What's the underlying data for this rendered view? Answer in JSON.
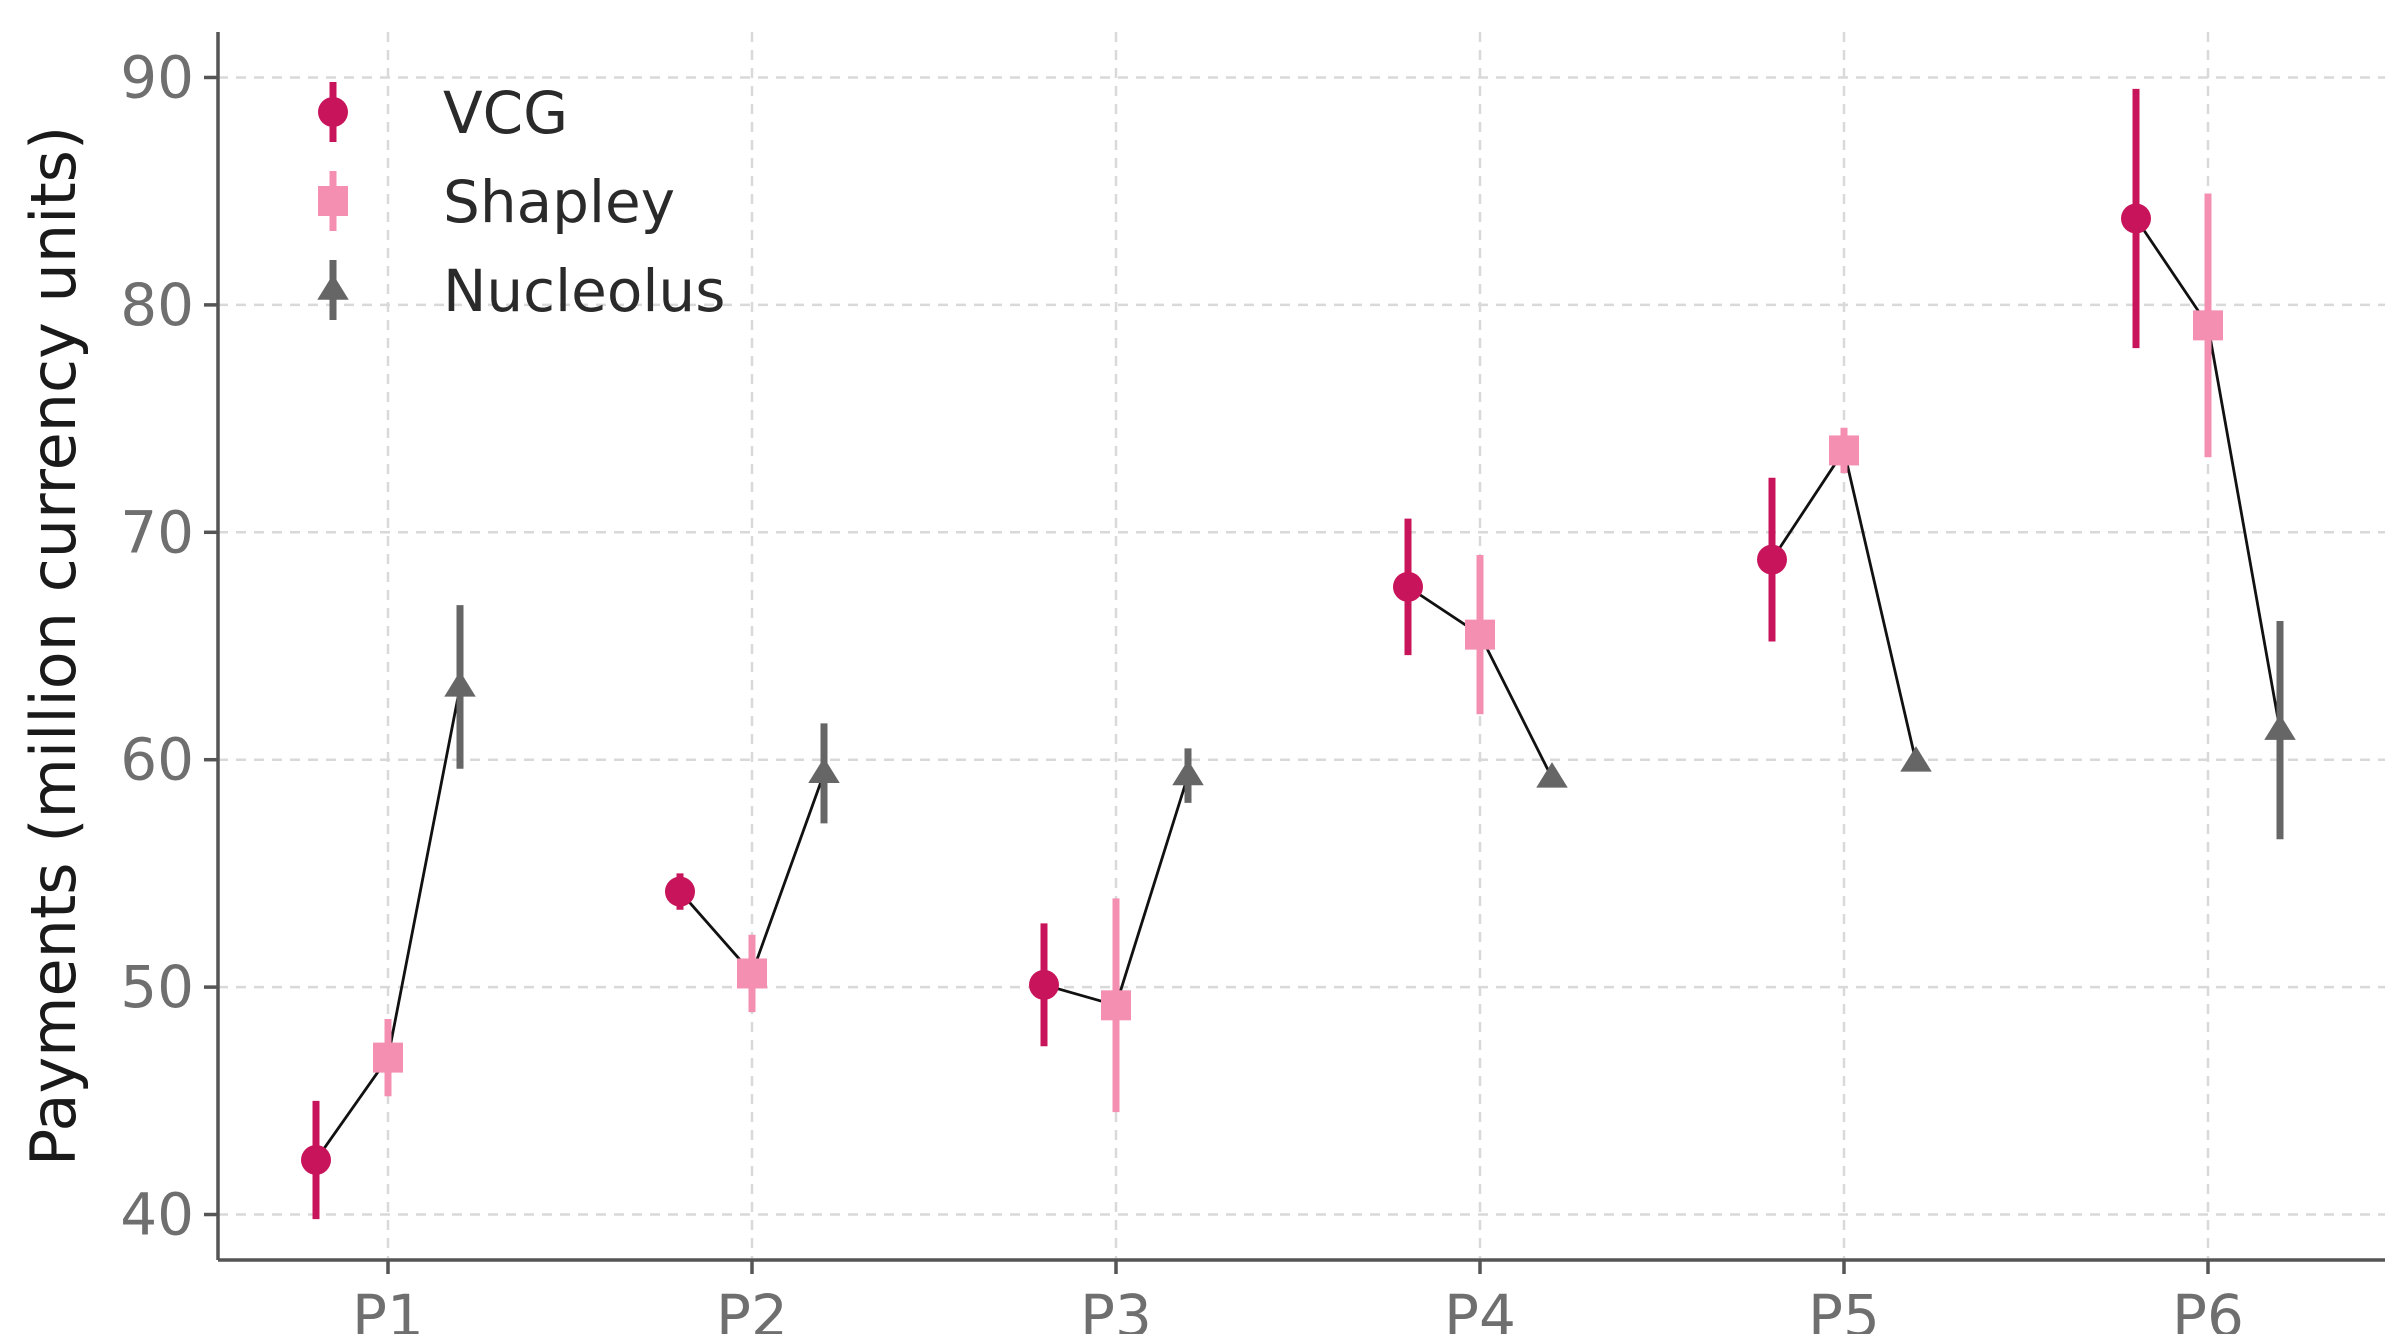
{
  "chart_data": {
    "type": "scatter",
    "title": "",
    "xlabel": "",
    "ylabel": "Payments (million currency units)",
    "categories": [
      "P1",
      "P2",
      "P3",
      "P4",
      "P5",
      "P6"
    ],
    "ylim": [
      38,
      92
    ],
    "yticks": [
      40,
      50,
      60,
      70,
      80,
      90
    ],
    "grid": true,
    "legend_position": "top-left",
    "connected_within_category": true,
    "series": [
      {
        "name": "VCG",
        "marker": "circle",
        "color": "#c8145a",
        "values": [
          42.4,
          54.2,
          50.1,
          67.6,
          68.8,
          83.8
        ],
        "errors": [
          2.6,
          0.8,
          2.7,
          3.0,
          3.6,
          5.7
        ]
      },
      {
        "name": "Shapley",
        "marker": "square",
        "color": "#f48fb1",
        "values": [
          46.9,
          50.6,
          49.2,
          65.5,
          73.6,
          79.1
        ],
        "errors": [
          1.7,
          1.7,
          4.7,
          3.5,
          1.0,
          5.8
        ]
      },
      {
        "name": "Nucleolus",
        "marker": "triangle",
        "color": "#666666",
        "values": [
          63.2,
          59.4,
          59.3,
          59.2,
          59.9,
          61.3
        ],
        "errors": [
          3.6,
          2.2,
          1.2,
          0.0,
          0.0,
          4.8
        ]
      }
    ]
  }
}
